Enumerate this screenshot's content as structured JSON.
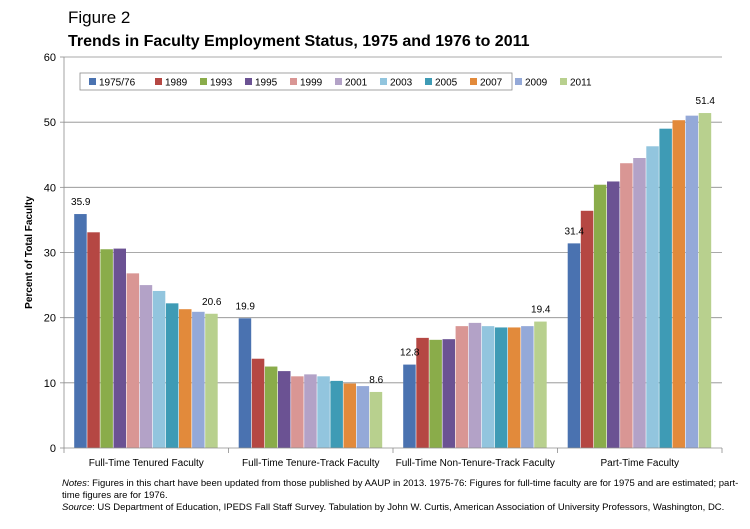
{
  "figure_label": "Figure 2",
  "figure_title": "Trends in Faculty Employment Status, 1975 and 1976 to 2011",
  "notes_label": "Notes",
  "notes_text": ": Figures in this chart have been updated from those published by AAUP in 2013. 1975-76: Figures for full-time faculty are for 1975 and are estimated; part-time figures are for 1976.",
  "source_label": "Source",
  "source_text": ": US Department of Education, IPEDS Fall Staff Survey. Tabulation by John W. Curtis, American Association of University Professors, Washington, DC.",
  "chart_data": {
    "type": "bar",
    "title": "",
    "ylabel": "Percent of Total Faculty",
    "xlabel": "",
    "ylim": [
      0,
      60
    ],
    "yticks": [
      0,
      10,
      20,
      30,
      40,
      50,
      60
    ],
    "grid": true,
    "legend_position": "top-left",
    "categories": [
      "Full-Time Tenured Faculty",
      "Full-Time Tenure-Track Faculty",
      "Full-Time Non-Tenure-Track Faculty",
      "Part-Time Faculty"
    ],
    "series": [
      {
        "name": "1975/76",
        "color": "#4a72b0",
        "values": [
          35.9,
          19.9,
          12.8,
          31.4
        ]
      },
      {
        "name": "1989",
        "color": "#b54743",
        "values": [
          33.1,
          13.7,
          16.9,
          36.4
        ]
      },
      {
        "name": "1993",
        "color": "#8aac4a",
        "values": [
          30.5,
          12.5,
          16.6,
          40.4
        ]
      },
      {
        "name": "1995",
        "color": "#6b5293",
        "values": [
          30.6,
          11.8,
          16.7,
          40.9
        ]
      },
      {
        "name": "1999",
        "color": "#d99694",
        "values": [
          26.8,
          11.0,
          18.7,
          43.7
        ]
      },
      {
        "name": "2001",
        "color": "#b3a2c7",
        "values": [
          25.0,
          11.3,
          19.2,
          44.5
        ]
      },
      {
        "name": "2003",
        "color": "#92c5de",
        "values": [
          24.1,
          11.0,
          18.7,
          46.3
        ]
      },
      {
        "name": "2005",
        "color": "#3e9bb5",
        "values": [
          22.2,
          10.3,
          18.5,
          49.0
        ]
      },
      {
        "name": "2007",
        "color": "#e28a3b",
        "values": [
          21.3,
          9.9,
          18.5,
          50.3
        ]
      },
      {
        "name": "2009",
        "color": "#94a9d8",
        "values": [
          20.9,
          9.5,
          18.7,
          51.0
        ]
      },
      {
        "name": "2011",
        "color": "#b8d08e",
        "values": [
          20.6,
          8.6,
          19.4,
          51.4
        ]
      }
    ],
    "data_labels": [
      {
        "category": 0,
        "series": 0,
        "text": "35.9"
      },
      {
        "category": 0,
        "series": 10,
        "text": "20.6"
      },
      {
        "category": 1,
        "series": 0,
        "text": "19.9"
      },
      {
        "category": 1,
        "series": 10,
        "text": "8.6"
      },
      {
        "category": 2,
        "series": 0,
        "text": "12.8"
      },
      {
        "category": 2,
        "series": 10,
        "text": "19.4"
      },
      {
        "category": 3,
        "series": 0,
        "text": "31.4"
      },
      {
        "category": 3,
        "series": 10,
        "text": "51.4"
      }
    ]
  }
}
